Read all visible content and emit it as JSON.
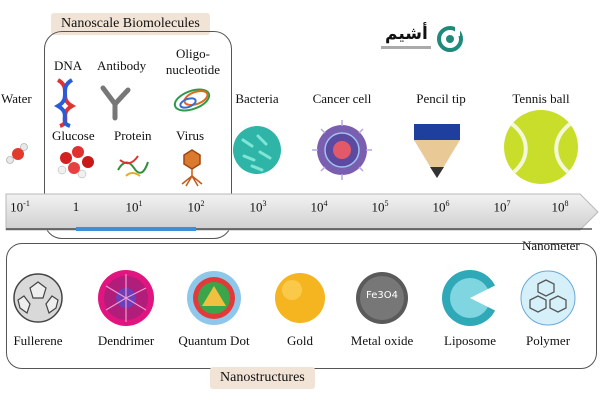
{
  "biomolecules_title": "Nanoscale Biomolecules",
  "nanostructures_title": "Nanostructures",
  "axis_unit": "Nanometer",
  "scale_ticks": [
    {
      "base": "10",
      "exp": "-1"
    },
    {
      "base": "1",
      "exp": ""
    },
    {
      "base": "10",
      "exp": "1"
    },
    {
      "base": "10",
      "exp": "2"
    },
    {
      "base": "10",
      "exp": "3"
    },
    {
      "base": "10",
      "exp": "4"
    },
    {
      "base": "10",
      "exp": "5"
    },
    {
      "base": "10",
      "exp": "6"
    },
    {
      "base": "10",
      "exp": "7"
    },
    {
      "base": "10",
      "exp": "8"
    }
  ],
  "biomolecules": {
    "dna": "DNA",
    "antibody": "Antibody",
    "oligo_line1": "Oligo-",
    "oligo_line2": "nucleotide",
    "glucose": "Glucose",
    "protein": "Protein",
    "virus": "Virus"
  },
  "objects": {
    "water": "Water",
    "bacteria": "Bacteria",
    "cancer_cell": "Cancer cell",
    "pencil_tip": "Pencil tip",
    "tennis_ball": "Tennis ball"
  },
  "nanostructures": [
    "Fullerene",
    "Dendrimer",
    "Quantum Dot",
    "Gold",
    "Metal oxide",
    "Liposome",
    "Polymer"
  ],
  "metal_oxide_formula": "Fe3O4",
  "logo_text": "أشيم",
  "colors": {
    "accent_blue": "#3f8fd8",
    "title_bg": "#f1e4d6",
    "gold": "#f4b520",
    "tennis": "#c9de2a"
  }
}
